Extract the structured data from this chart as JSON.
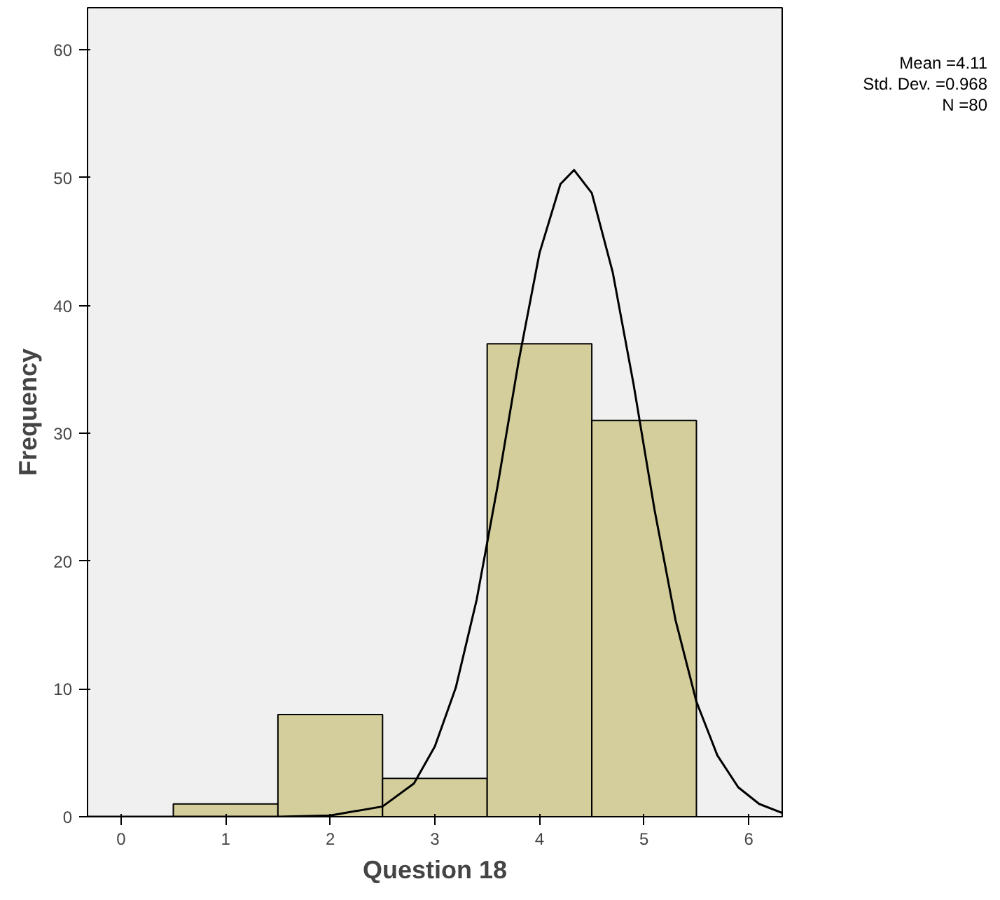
{
  "chart_data": {
    "type": "histogram",
    "xlabel": "Question 18",
    "ylabel": "Frequency",
    "bins": [
      0.5,
      1.5,
      2.5,
      3.5,
      4.5,
      5.5
    ],
    "values": [
      1,
      8,
      3,
      37,
      31
    ],
    "color": "#d3ce9b",
    "series": [
      {
        "type": "line",
        "color": "#000000",
        "x": [
          -0.32,
          1.5,
          2.0,
          2.5,
          2.8,
          3.0,
          3.2,
          3.4,
          3.6,
          3.8,
          4.0,
          4.2,
          4.33,
          4.5,
          4.7,
          4.9,
          5.1,
          5.3,
          5.5,
          5.7,
          5.9,
          6.1,
          6.32
        ],
        "values": [
          0,
          0,
          0.1,
          0.8,
          2.6,
          5.5,
          10.1,
          17,
          25.9,
          35.6,
          44.1,
          49.5,
          50.6,
          48.8,
          42.6,
          33.8,
          24,
          15.4,
          9,
          4.8,
          2.3,
          1,
          0.3
        ]
      }
    ],
    "xlim": [
      -0.32,
      6.32
    ],
    "ylim": [
      0,
      63.3
    ],
    "xticks": [
      0,
      1,
      2,
      3,
      4,
      5,
      6
    ],
    "yticks": [
      0,
      10,
      20,
      30,
      40,
      50,
      60
    ],
    "grid": false,
    "annotations": [
      "Mean =4.11",
      "Std. Dev. =0.968",
      "N =80"
    ]
  }
}
